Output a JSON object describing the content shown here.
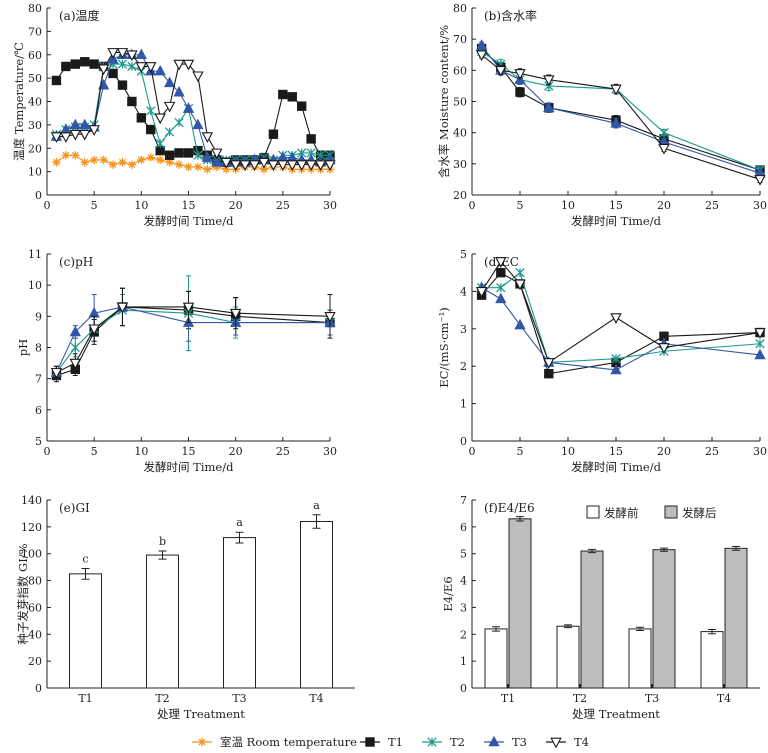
{
  "colors": {
    "room": "#F7941D",
    "T1": "#1a1a1a",
    "T2": "#1E9A8C",
    "T3": "#3357A8",
    "T4": "#1a1a1a",
    "bar_before": "#ffffff",
    "bar_after": "#bdbdbd"
  },
  "legend": {
    "items": [
      {
        "key": "room",
        "label": "室温 Room temperature",
        "marker": "asterisk"
      },
      {
        "key": "T1",
        "label": "T1",
        "marker": "square"
      },
      {
        "key": "T2",
        "label": "T2",
        "marker": "x-cross"
      },
      {
        "key": "T3",
        "label": "T3",
        "marker": "triangle-up"
      },
      {
        "key": "T4",
        "label": "T4",
        "marker": "triangle-down-open"
      }
    ]
  },
  "chart_data": [
    {
      "id": "a",
      "type": "line",
      "title": "(a)温度",
      "xlabel": "发酵时间 Time/d",
      "ylabel": "温度 Temperature/℃",
      "xlim": [
        0,
        30
      ],
      "ylim": [
        0,
        80
      ],
      "xticks": [
        0,
        5,
        10,
        15,
        20,
        25,
        30
      ],
      "yticks": [
        0,
        10,
        20,
        30,
        40,
        50,
        60,
        70,
        80
      ],
      "series": [
        {
          "name": "室温 Room temperature",
          "key": "room",
          "marker": "asterisk",
          "x": [
            1,
            2,
            3,
            4,
            5,
            6,
            7,
            8,
            9,
            10,
            11,
            12,
            13,
            14,
            15,
            16,
            17,
            18,
            19,
            20,
            21,
            22,
            23,
            24,
            25,
            26,
            27,
            28,
            29,
            30
          ],
          "y": [
            14,
            17,
            17,
            14,
            15,
            15,
            13,
            14,
            13,
            15,
            16,
            15,
            14,
            13,
            12,
            12,
            11,
            12,
            11,
            11,
            12,
            12,
            11,
            12,
            12,
            11,
            11,
            11,
            11,
            11
          ]
        },
        {
          "name": "T1",
          "key": "T1",
          "marker": "square",
          "x": [
            1,
            2,
            3,
            4,
            5,
            6,
            7,
            8,
            9,
            10,
            11,
            12,
            13,
            14,
            15,
            16,
            17,
            18,
            19,
            20,
            21,
            22,
            23,
            24,
            25,
            26,
            27,
            28,
            29,
            30
          ],
          "y": [
            49,
            55,
            56,
            57,
            56,
            55,
            52,
            47,
            40,
            33,
            28,
            19,
            17,
            18,
            18,
            19,
            17,
            15,
            14,
            15,
            15,
            15,
            16,
            26,
            43,
            42,
            38,
            24,
            17,
            17
          ]
        },
        {
          "name": "T2",
          "key": "T2",
          "marker": "x-cross",
          "x": [
            1,
            2,
            3,
            4,
            5,
            6,
            7,
            8,
            9,
            10,
            11,
            12,
            13,
            14,
            15,
            16,
            17,
            18,
            19,
            20,
            21,
            22,
            23,
            24,
            25,
            26,
            27,
            28,
            29,
            30
          ],
          "y": [
            26,
            28,
            29,
            29,
            30,
            55,
            56,
            56,
            55,
            53,
            36,
            22,
            27,
            31,
            37,
            17,
            15,
            15,
            15,
            15,
            15,
            15,
            16,
            15,
            17,
            17,
            18,
            18,
            17,
            17
          ]
        },
        {
          "name": "T3",
          "key": "T3",
          "marker": "triangle-up",
          "x": [
            1,
            2,
            3,
            4,
            5,
            6,
            7,
            8,
            9,
            10,
            11,
            12,
            13,
            14,
            15,
            16,
            17,
            18,
            19,
            20,
            21,
            22,
            23,
            24,
            25,
            26,
            27,
            28,
            29,
            30
          ],
          "y": [
            25,
            28,
            30,
            30,
            29,
            47,
            58,
            60,
            60,
            60,
            53,
            53,
            48,
            44,
            37,
            30,
            16,
            14,
            14,
            14,
            14,
            15,
            15,
            15,
            16,
            16,
            15,
            15,
            14,
            15
          ]
        },
        {
          "name": "T4",
          "key": "T4",
          "marker": "triangle-down-open",
          "x": [
            1,
            2,
            3,
            4,
            5,
            6,
            7,
            8,
            9,
            10,
            11,
            12,
            13,
            14,
            15,
            16,
            17,
            18,
            19,
            20,
            21,
            22,
            23,
            24,
            25,
            26,
            27,
            28,
            29,
            30
          ],
          "y": [
            25,
            25,
            26,
            26,
            28,
            54,
            61,
            61,
            60,
            55,
            55,
            33,
            38,
            56,
            56,
            51,
            25,
            18,
            14,
            13,
            13,
            13,
            14,
            13,
            13,
            13,
            13,
            13,
            13,
            13
          ]
        }
      ]
    },
    {
      "id": "b",
      "type": "line",
      "title": "(b)含水率",
      "xlabel": "发酵时间 Time/d",
      "ylabel": "含水率 Moisture content/%",
      "xlim": [
        0,
        30
      ],
      "ylim": [
        20,
        80
      ],
      "xticks": [
        0,
        5,
        10,
        15,
        20,
        25,
        30
      ],
      "yticks": [
        20,
        30,
        40,
        50,
        60,
        70,
        80
      ],
      "series": [
        {
          "name": "T1",
          "key": "T1",
          "marker": "square",
          "x": [
            1,
            3,
            5,
            8,
            15,
            20,
            30
          ],
          "y": [
            67,
            61,
            53,
            48,
            44,
            38,
            28
          ],
          "err": [
            1,
            1.5,
            1.5,
            1.5,
            1.5,
            1,
            1
          ]
        },
        {
          "name": "T2",
          "key": "T2",
          "marker": "x-cross",
          "x": [
            1,
            3,
            5,
            8,
            15,
            20,
            30
          ],
          "y": [
            66,
            62,
            57,
            55,
            54,
            40,
            28
          ],
          "err": [
            1,
            1.5,
            1.5,
            1.5,
            1.5,
            1,
            1
          ]
        },
        {
          "name": "T3",
          "key": "T3",
          "marker": "triangle-up",
          "x": [
            1,
            3,
            5,
            8,
            15,
            20,
            30
          ],
          "y": [
            68,
            60,
            57,
            48,
            43,
            37,
            27
          ],
          "err": [
            1,
            1.5,
            1.5,
            1.5,
            1.5,
            1,
            1
          ]
        },
        {
          "name": "T4",
          "key": "T4",
          "marker": "triangle-down-open",
          "x": [
            1,
            3,
            5,
            8,
            15,
            20,
            30
          ],
          "y": [
            65,
            60,
            59,
            57,
            54,
            35,
            25
          ],
          "err": [
            1,
            1.5,
            1.5,
            1.5,
            1.5,
            1,
            1
          ]
        }
      ]
    },
    {
      "id": "c",
      "type": "line",
      "title": "(c)pH",
      "xlabel": "发酵时间 Time/d",
      "ylabel": "pH",
      "xlim": [
        0,
        30
      ],
      "ylim": [
        5,
        11
      ],
      "xticks": [
        0,
        5,
        10,
        15,
        20,
        25,
        30
      ],
      "yticks": [
        5,
        6,
        7,
        8,
        9,
        10,
        11
      ],
      "series": [
        {
          "name": "T1",
          "key": "T1",
          "marker": "square",
          "x": [
            1,
            3,
            5,
            8,
            15,
            20,
            30
          ],
          "y": [
            7.1,
            7.3,
            8.5,
            9.3,
            9.2,
            9.0,
            8.8
          ],
          "err": [
            0.2,
            0.2,
            0.4,
            0.6,
            0.6,
            0.6,
            0.4
          ]
        },
        {
          "name": "T2",
          "key": "T2",
          "marker": "x-cross",
          "x": [
            1,
            3,
            5,
            8,
            15,
            20,
            30
          ],
          "y": [
            7.2,
            8.0,
            8.6,
            9.2,
            9.1,
            8.8,
            8.8
          ],
          "err": [
            0.2,
            0.3,
            0.4,
            0.5,
            1.2,
            0.5,
            0.4
          ]
        },
        {
          "name": "T3",
          "key": "T3",
          "marker": "triangle-up",
          "x": [
            1,
            3,
            5,
            8,
            15,
            20,
            30
          ],
          "y": [
            7.2,
            8.5,
            9.1,
            9.3,
            8.8,
            8.8,
            8.8
          ],
          "err": [
            0.2,
            0.2,
            0.6,
            0.6,
            0.6,
            0.4,
            0.4
          ]
        },
        {
          "name": "T4",
          "key": "T4",
          "marker": "triangle-down-open",
          "x": [
            1,
            3,
            5,
            8,
            15,
            20,
            30
          ],
          "y": [
            7.2,
            7.5,
            8.6,
            9.3,
            9.3,
            9.1,
            9.0
          ],
          "err": [
            0.2,
            0.3,
            0.4,
            0.6,
            0.5,
            0.5,
            0.7
          ]
        }
      ]
    },
    {
      "id": "d",
      "type": "line",
      "title": "(d)EC",
      "xlabel": "发酵时间 Time/d",
      "ylabel": "EC/(mS·cm⁻¹)",
      "xlim": [
        0,
        30
      ],
      "ylim": [
        0,
        5
      ],
      "xticks": [
        0,
        5,
        10,
        15,
        20,
        25,
        30
      ],
      "yticks": [
        0,
        1,
        2,
        3,
        4,
        5
      ],
      "series": [
        {
          "name": "T1",
          "key": "T1",
          "marker": "square",
          "x": [
            1,
            3,
            5,
            8,
            15,
            20,
            30
          ],
          "y": [
            3.9,
            4.5,
            4.2,
            1.8,
            2.1,
            2.8,
            2.9
          ]
        },
        {
          "name": "T2",
          "key": "T2",
          "marker": "x-cross",
          "x": [
            1,
            3,
            5,
            8,
            15,
            20,
            30
          ],
          "y": [
            4.1,
            4.1,
            4.5,
            2.1,
            2.2,
            2.4,
            2.6
          ]
        },
        {
          "name": "T3",
          "key": "T3",
          "marker": "triangle-up",
          "x": [
            1,
            3,
            5,
            8,
            15,
            20,
            30
          ],
          "y": [
            4.1,
            3.8,
            3.1,
            2.1,
            1.9,
            2.6,
            2.3
          ]
        },
        {
          "name": "T4",
          "key": "T4",
          "marker": "triangle-down-open",
          "x": [
            1,
            3,
            5,
            8,
            15,
            20,
            30
          ],
          "y": [
            4.0,
            4.8,
            4.2,
            2.1,
            3.3,
            2.5,
            2.9
          ]
        }
      ]
    },
    {
      "id": "e",
      "type": "bar",
      "title": "(e)GI",
      "xlabel": "处理 Treatment",
      "ylabel": "种子发芽指数 GI/%",
      "ylim": [
        0,
        140
      ],
      "yticks": [
        0,
        20,
        40,
        60,
        80,
        100,
        120,
        140
      ],
      "categories": [
        "T1",
        "T2",
        "T3",
        "T4"
      ],
      "values": [
        85,
        99,
        112,
        124
      ],
      "err": [
        4,
        3,
        4,
        5
      ],
      "annotations": [
        "c",
        "b",
        "a",
        "a"
      ]
    },
    {
      "id": "f",
      "type": "bar",
      "title": "(f)E4/E6",
      "xlabel": "处理 Treatment",
      "ylabel": "E4/E6",
      "ylim": [
        0,
        7
      ],
      "yticks": [
        0,
        1,
        2,
        3,
        4,
        5,
        6,
        7
      ],
      "categories": [
        "T1",
        "T2",
        "T3",
        "T4"
      ],
      "series": [
        {
          "name": "发酵前",
          "key": "bar_before",
          "values": [
            2.2,
            2.3,
            2.2,
            2.1
          ],
          "err": [
            0.08,
            0.05,
            0.06,
            0.08
          ]
        },
        {
          "name": "发酵后",
          "key": "bar_after",
          "values": [
            6.3,
            5.1,
            5.15,
            5.2
          ],
          "err": [
            0.08,
            0.06,
            0.06,
            0.07
          ]
        }
      ],
      "legend_position": "top-right"
    }
  ]
}
